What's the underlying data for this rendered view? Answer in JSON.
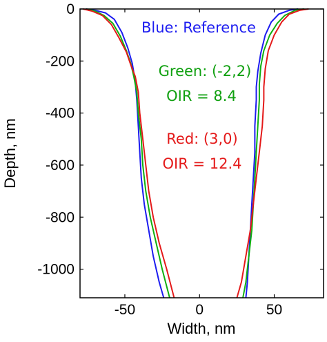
{
  "chart_data": {
    "type": "line",
    "xlabel": "Width, nm",
    "ylabel": "Depth, nm",
    "xlim": [
      -80,
      83
    ],
    "ylim": [
      -1110,
      0
    ],
    "xticks": [
      -50,
      0,
      50
    ],
    "yticks": [
      0,
      -200,
      -400,
      -600,
      -800,
      -1000
    ],
    "grid": false,
    "colors": {
      "blue": "#1c1cf0",
      "green": "#10b010",
      "red": "#e41a1a"
    },
    "annotations": [
      {
        "text": "Blue: Reference",
        "color": "#1c1cf0"
      },
      {
        "text": "Green: (-2,2)",
        "color": "#10a010"
      },
      {
        "text": "OIR = 8.4",
        "color": "#10a010"
      },
      {
        "text": "Red: (3,0)",
        "color": "#e41a1a"
      },
      {
        "text": "OIR = 12.4",
        "color": "#e41a1a"
      }
    ],
    "series": [
      {
        "color": "#1c1cf0",
        "left": [
          [
            -76,
            0
          ],
          [
            -70,
            -5
          ],
          [
            -63,
            -15
          ],
          [
            -57,
            -40
          ],
          [
            -52,
            -90
          ],
          [
            -48,
            -150
          ],
          [
            -45,
            -210
          ],
          [
            -43,
            -280
          ],
          [
            -42,
            -350
          ],
          [
            -41,
            -450
          ],
          [
            -40,
            -550
          ],
          [
            -39,
            -650
          ],
          [
            -37,
            -750
          ],
          [
            -34,
            -850
          ],
          [
            -31,
            -950
          ],
          [
            -27,
            -1050
          ],
          [
            -24,
            -1110
          ]
        ],
        "right": [
          [
            66,
            0
          ],
          [
            60,
            -5
          ],
          [
            53,
            -20
          ],
          [
            48,
            -50
          ],
          [
            44,
            -100
          ],
          [
            41,
            -170
          ],
          [
            39,
            -240
          ],
          [
            38,
            -300
          ],
          [
            38,
            -350
          ],
          [
            37,
            -450
          ],
          [
            37,
            -550
          ],
          [
            36,
            -650
          ],
          [
            35,
            -750
          ],
          [
            34,
            -850
          ],
          [
            33,
            -950
          ],
          [
            32,
            -1050
          ],
          [
            31,
            -1110
          ]
        ]
      },
      {
        "color": "#10b010",
        "left": [
          [
            -76,
            0
          ],
          [
            -70,
            -8
          ],
          [
            -64,
            -25
          ],
          [
            -58,
            -55
          ],
          [
            -53,
            -105
          ],
          [
            -49,
            -160
          ],
          [
            -46,
            -210
          ],
          [
            -44,
            -260
          ],
          [
            -42,
            -320
          ],
          [
            -41,
            -400
          ],
          [
            -39,
            -500
          ],
          [
            -38,
            -600
          ],
          [
            -36,
            -700
          ],
          [
            -33,
            -800
          ],
          [
            -29,
            -900
          ],
          [
            -25,
            -1000
          ],
          [
            -20,
            -1110
          ]
        ],
        "right": [
          [
            70,
            0
          ],
          [
            64,
            -5
          ],
          [
            57,
            -25
          ],
          [
            52,
            -55
          ],
          [
            47,
            -100
          ],
          [
            43,
            -160
          ],
          [
            41,
            -220
          ],
          [
            40,
            -290
          ],
          [
            40,
            -350
          ],
          [
            39,
            -450
          ],
          [
            38,
            -550
          ],
          [
            37,
            -650
          ],
          [
            36,
            -750
          ],
          [
            35,
            -850
          ],
          [
            33,
            -950
          ],
          [
            31,
            -1050
          ],
          [
            29,
            -1110
          ]
        ]
      },
      {
        "color": "#e41a1a",
        "left": [
          [
            -78,
            0
          ],
          [
            -72,
            -8
          ],
          [
            -65,
            -25
          ],
          [
            -59,
            -60
          ],
          [
            -54,
            -110
          ],
          [
            -49,
            -165
          ],
          [
            -46,
            -215
          ],
          [
            -43,
            -260
          ],
          [
            -41,
            -320
          ],
          [
            -40,
            -400
          ],
          [
            -38,
            -500
          ],
          [
            -36,
            -600
          ],
          [
            -34,
            -700
          ],
          [
            -31,
            -800
          ],
          [
            -27,
            -900
          ],
          [
            -22,
            -1000
          ],
          [
            -17,
            -1110
          ]
        ],
        "right": [
          [
            73,
            0
          ],
          [
            67,
            -5
          ],
          [
            60,
            -20
          ],
          [
            55,
            -50
          ],
          [
            50,
            -100
          ],
          [
            46,
            -160
          ],
          [
            44,
            -230
          ],
          [
            43,
            -300
          ],
          [
            43,
            -350
          ],
          [
            42,
            -450
          ],
          [
            40,
            -550
          ],
          [
            38,
            -650
          ],
          [
            36,
            -750
          ],
          [
            34,
            -850
          ],
          [
            31,
            -950
          ],
          [
            28,
            -1050
          ],
          [
            25,
            -1110
          ]
        ]
      }
    ]
  }
}
